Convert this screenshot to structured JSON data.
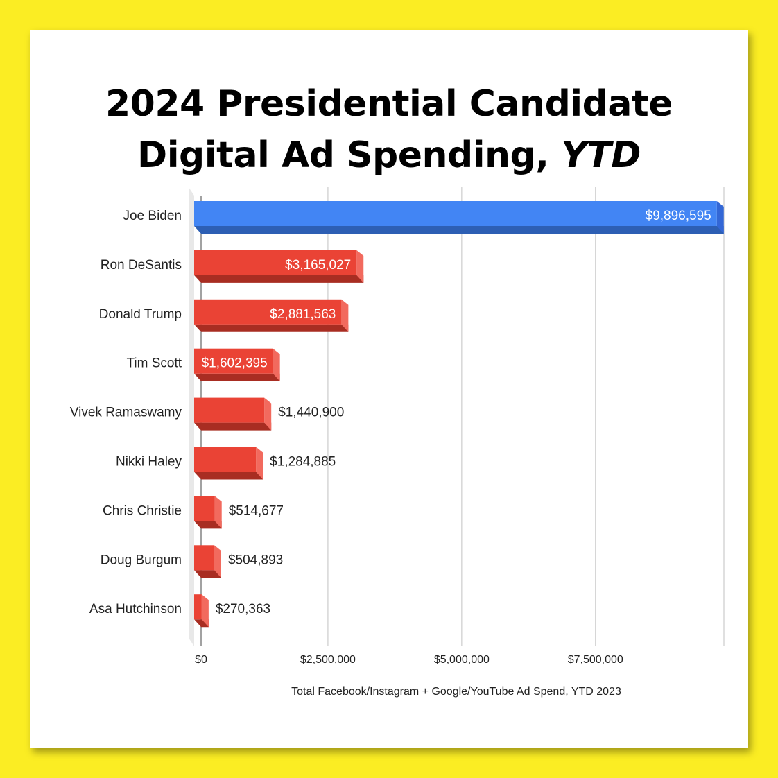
{
  "title_line1": "2024 Presidential Candidate",
  "title_line2_plain": "Digital Ad Spending, ",
  "title_line2_italic": "YTD",
  "colors": {
    "background": "#fbed23",
    "highlight": "#4285f4",
    "highlight_side": "#2d5fb4",
    "default": "#ea4335",
    "default_side": "#a82d22"
  },
  "chart_data": {
    "type": "bar",
    "orientation": "horizontal",
    "title": "2024 Presidential Candidate Digital Ad Spending, YTD",
    "xlabel": "Total Facebook/Instagram + Google/YouTube Ad Spend, YTD 2023",
    "ylabel": "",
    "xlim": [
      0,
      10000000
    ],
    "x_ticks": [
      0,
      2500000,
      5000000,
      7500000
    ],
    "x_tick_labels": [
      "$0",
      "$2,500,000",
      "$5,000,000",
      "$7,500,000"
    ],
    "grid": true,
    "categories": [
      "Joe Biden",
      "Ron DeSantis",
      "Donald Trump",
      "Tim Scott",
      "Vivek Ramaswamy",
      "Nikki Haley",
      "Chris Christie",
      "Doug Burgum",
      "Asa Hutchinson"
    ],
    "values": [
      9896595,
      3165027,
      2881563,
      1602395,
      1440900,
      1284885,
      514677,
      504893,
      270363
    ],
    "value_labels": [
      "$9,896,595",
      "$3,165,027",
      "$2,881,563",
      "$1,602,395",
      "$1,440,900",
      "$1,284,885",
      "$514,677",
      "$504,893",
      "$270,363"
    ],
    "highlight_category": "Joe Biden"
  }
}
